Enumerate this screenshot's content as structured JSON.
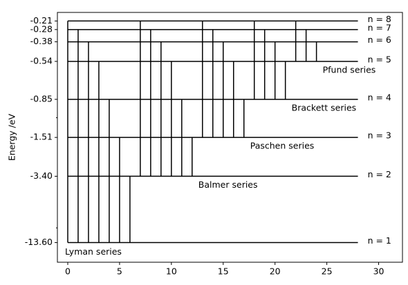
{
  "chart_data": {
    "type": "energy_levels",
    "ylabel": "Energy /eV",
    "yscale": "symlog",
    "linthresh": 1,
    "ylim": [
      -20.5,
      -0.14
    ],
    "yticks": [
      {
        "value": -13.6,
        "label": "-13.60"
      },
      {
        "value": -3.4,
        "label": "-3.40"
      },
      -1.51,
      -0.85,
      -0.54,
      -0.38,
      -0.28,
      -0.21
    ],
    "yminorticks": [
      -10,
      -1
    ],
    "xlim": [
      -1,
      32.3
    ],
    "xticks": [
      0,
      5,
      10,
      15,
      20,
      25,
      30
    ],
    "color": "#000000",
    "level_x": [
      0,
      28
    ],
    "levels": [
      -13.6,
      -3.4,
      -1.51,
      -0.85,
      -0.54,
      -0.38,
      -0.28,
      -0.21
    ],
    "level_labels": [
      "n = 1",
      "n = 2",
      "n = 3",
      "n = 4",
      "n = 5",
      "n = 6",
      "n = 7",
      "n = 8"
    ],
    "series": [
      {
        "name": "Lyman series",
        "lower": -13.6,
        "x": [
          0,
          1,
          2,
          3,
          4,
          5,
          6
        ],
        "upper": [
          -0.21,
          -0.28,
          -0.38,
          -0.54,
          -0.85,
          -1.51,
          -3.4
        ]
      },
      {
        "name": "Balmer series",
        "lower": -3.4,
        "x": [
          7,
          8,
          9,
          10,
          11,
          12
        ],
        "upper": [
          -0.21,
          -0.28,
          -0.38,
          -0.54,
          -0.85,
          -1.51
        ]
      },
      {
        "name": "Paschen series",
        "lower": -1.51,
        "x": [
          13,
          14,
          15,
          16,
          17
        ],
        "upper": [
          -0.21,
          -0.28,
          -0.38,
          -0.54,
          -0.85
        ]
      },
      {
        "name": "Brackett series",
        "lower": -0.85,
        "x": [
          18,
          19,
          20,
          21
        ],
        "upper": [
          -0.21,
          -0.28,
          -0.38,
          -0.54
        ]
      },
      {
        "name": "Pfund series",
        "lower": -0.54,
        "x": [
          22,
          23,
          24
        ],
        "upper": [
          -0.21,
          -0.28,
          -0.38
        ]
      }
    ]
  }
}
